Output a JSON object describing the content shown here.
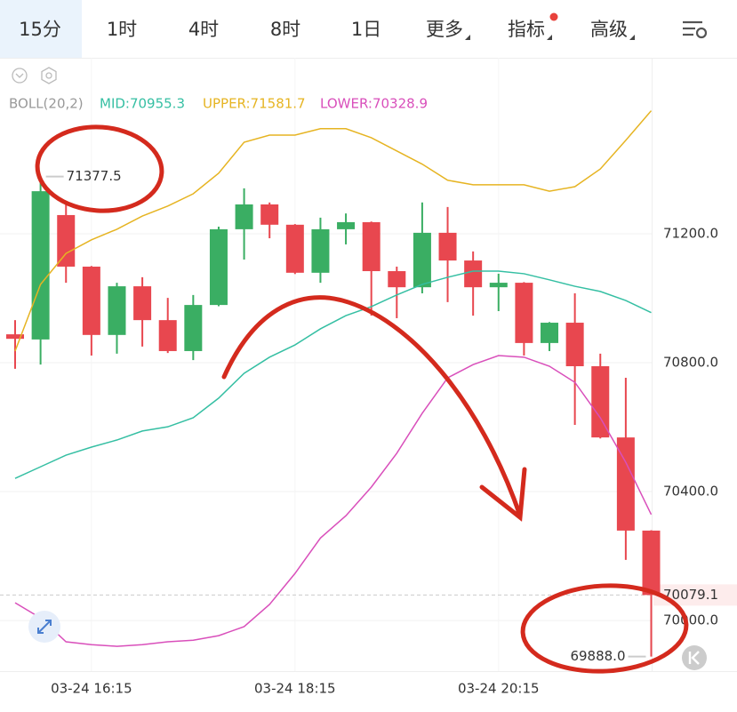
{
  "tabs": [
    {
      "label": "15分",
      "active": true
    },
    {
      "label": "1时"
    },
    {
      "label": "4时"
    },
    {
      "label": "8时"
    },
    {
      "label": "1日"
    },
    {
      "label": "更多",
      "menu": true
    },
    {
      "label": "指标",
      "menu": true,
      "dot": true
    },
    {
      "label": "高级",
      "menu": true
    }
  ],
  "chart_data": {
    "type": "candlestick",
    "indicator": "BOLL(20,2)",
    "categories": [
      null,
      null,
      null,
      "03-24 16:15",
      null,
      null,
      null,
      null,
      null,
      null,
      null,
      "03-24 18:15",
      null,
      null,
      null,
      null,
      null,
      null,
      null,
      "03-24 20:15",
      null,
      null,
      null,
      null,
      null,
      null
    ],
    "open": [
      70888,
      70872,
      71258,
      71098,
      70886,
      71037,
      70932,
      70836,
      70979,
      71214,
      71291,
      71228,
      71079,
      71214,
      71236,
      71084,
      71034,
      71203,
      71117,
      71034,
      71048,
      70861,
      70924,
      70789,
      70568,
      70279
    ],
    "high": [
      70932,
      71377.5,
      71291,
      71100,
      71048,
      71065,
      71001,
      71010,
      71222,
      71341,
      71297,
      71230,
      71250,
      71263,
      71238,
      71098,
      71297,
      71283,
      71145,
      71076,
      71050,
      70926,
      71015,
      70828,
      70753,
      70280
    ],
    "low": [
      70781,
      70794,
      71048,
      70822,
      70828,
      70850,
      70830,
      70808,
      70975,
      71120,
      71186,
      71075,
      71048,
      71167,
      70946,
      70938,
      71015,
      70988,
      70946,
      70960,
      70822,
      70836,
      70607,
      70565,
      70188,
      69888
    ],
    "close": [
      70874,
      71332,
      71098,
      70886,
      71037,
      70932,
      70836,
      70979,
      71214,
      71291,
      71228,
      71079,
      71214,
      71236,
      71084,
      71034,
      71203,
      71117,
      71034,
      71048,
      70861,
      70924,
      70789,
      70568,
      70279,
      70079.1
    ],
    "up_color": "#3aae63",
    "down_color": "#e8474f",
    "series": [
      {
        "name": "MID:70955.3",
        "color": "#35bfa3",
        "values": [
          70441,
          70477,
          70513,
          70538,
          70560,
          70588,
          70601,
          70629,
          70690,
          70767,
          70817,
          70855,
          70905,
          70946,
          70974,
          71010,
          71043,
          71065,
          71084,
          71084,
          71076,
          71057,
          71037,
          71021,
          70993,
          70955.3
        ]
      },
      {
        "name": "UPPER:71581.7",
        "color": "#e6b422",
        "values": [
          70836,
          71043,
          71139,
          71181,
          71214,
          71255,
          71286,
          71324,
          71388,
          71484,
          71506,
          71506,
          71526,
          71526,
          71498,
          71457,
          71416,
          71366,
          71352,
          71352,
          71352,
          71332,
          71346,
          71401,
          71490,
          71581.7
        ]
      },
      {
        "name": "LOWER:70328.9",
        "color": "#d94fbb",
        "values": [
          70055,
          70008,
          69934,
          69925,
          69920,
          69925,
          69934,
          69939,
          69953,
          69981,
          70050,
          70146,
          70256,
          70325,
          70414,
          70519,
          70643,
          70753,
          70794,
          70822,
          70817,
          70789,
          70739,
          70629,
          70491,
          70328.9
        ]
      }
    ],
    "ylim": [
      69843,
      71746
    ],
    "yticks": [
      {
        "value": 71200,
        "label": "71200.0"
      },
      {
        "value": 70800,
        "label": "70800.0"
      },
      {
        "value": 70400,
        "label": "70400.0"
      },
      {
        "value": 70000,
        "label": "70000.0"
      }
    ],
    "grid": true,
    "last_price": {
      "value": 70079.1,
      "label": "70079.1"
    },
    "annotations": [
      {
        "label": "71377.5",
        "value": 71377.5,
        "index": 1,
        "side": "right"
      },
      {
        "label": "69888.0",
        "value": 69888,
        "index": 25,
        "side": "left"
      }
    ]
  }
}
